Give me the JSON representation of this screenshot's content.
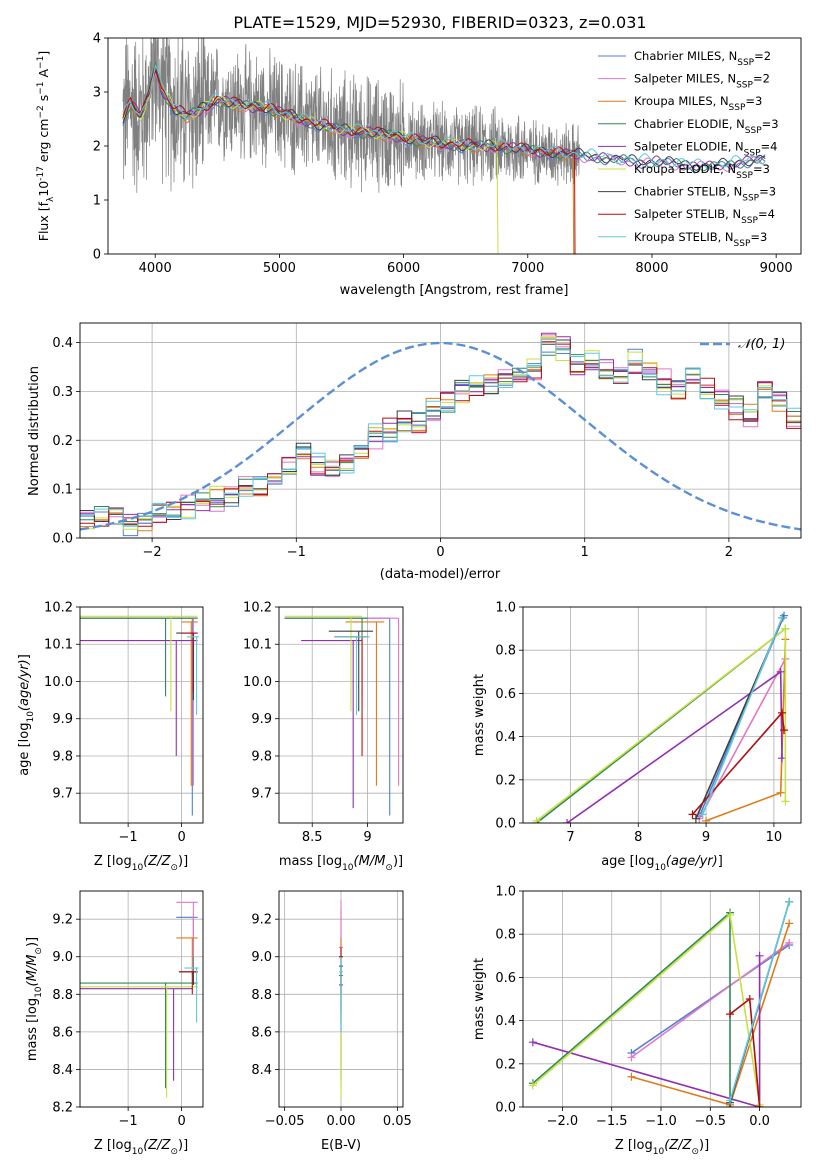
{
  "figure_title": "PLATE=1529, MJD=52930, FIBERID=0323, z=0.031",
  "colors": {
    "observed": "#808080",
    "gaussian": "#5b8fd6",
    "grid": "#b0b0b0"
  },
  "models": [
    {
      "label": "Chabrier MILES, N",
      "nssp": "=2",
      "color": "#4f7fd8"
    },
    {
      "label": "Salpeter MILES, N",
      "nssp": "=2",
      "color": "#e377c2"
    },
    {
      "label": "Kroupa MILES, N",
      "nssp": "=3",
      "color": "#e07b1a"
    },
    {
      "label": "Chabrier ELODIE, N",
      "nssp": "=3",
      "color": "#2e8b57"
    },
    {
      "label": "Salpeter ELODIE, N",
      "nssp": "=4",
      "color": "#9030b0"
    },
    {
      "label": "Kroupa ELODIE, N",
      "nssp": "=3",
      "color": "#c8e040"
    },
    {
      "label": "Chabrier STELIB, N",
      "nssp": "=3",
      "color": "#404040"
    },
    {
      "label": "Salpeter STELIB, N",
      "nssp": "=4",
      "color": "#b01010"
    },
    {
      "label": "Kroupa STELIB, N",
      "nssp": "=3",
      "color": "#60c8e0"
    }
  ],
  "chart_data": [
    {
      "id": "spectrum",
      "type": "line",
      "xlabel": "wavelength [Angstrom, rest frame]",
      "ylabel": "Flux [f",
      "ylabel_tail": "10",
      "ylabel_exp": "-17",
      "ylabel_units": " erg cm",
      "xlim": [
        3620,
        9200
      ],
      "ylim": [
        0,
        4
      ],
      "xticks": [
        4000,
        5000,
        6000,
        7000,
        8000,
        9000
      ],
      "yticks": [
        0,
        1,
        2,
        3,
        4
      ],
      "observed_range": [
        3740,
        7420
      ],
      "model_range": [
        3740,
        8920
      ],
      "continuum": [
        [
          3740,
          2.5
        ],
        [
          3800,
          2.8
        ],
        [
          3880,
          2.55
        ],
        [
          3950,
          2.9
        ],
        [
          4000,
          3.5
        ],
        [
          4050,
          3.05
        ],
        [
          4150,
          2.7
        ],
        [
          4250,
          2.55
        ],
        [
          4350,
          2.65
        ],
        [
          4500,
          2.85
        ],
        [
          4700,
          2.75
        ],
        [
          4900,
          2.7
        ],
        [
          5100,
          2.55
        ],
        [
          5300,
          2.4
        ],
        [
          5500,
          2.3
        ],
        [
          5700,
          2.25
        ],
        [
          5900,
          2.2
        ],
        [
          6100,
          2.1
        ],
        [
          6300,
          2.05
        ],
        [
          6500,
          2.0
        ],
        [
          6700,
          2.0
        ],
        [
          6900,
          1.95
        ],
        [
          7100,
          1.9
        ],
        [
          7300,
          1.85
        ],
        [
          7500,
          1.82
        ],
        [
          7700,
          1.75
        ],
        [
          7900,
          1.72
        ],
        [
          8100,
          1.7
        ],
        [
          8300,
          1.65
        ],
        [
          8500,
          1.62
        ],
        [
          8700,
          1.7
        ],
        [
          8900,
          1.75
        ]
      ],
      "model_dropouts": [
        {
          "model": 5,
          "x": 6760
        },
        {
          "model": 2,
          "x": 7370
        },
        {
          "model": 7,
          "x": 7380
        }
      ]
    },
    {
      "id": "residuals",
      "type": "step",
      "xlabel": "(data-model)/error",
      "ylabel": "Normed distribution",
      "xlim": [
        -2.5,
        2.5
      ],
      "ylim": [
        0,
        0.44
      ],
      "xticks": [
        -2,
        -1,
        0,
        1,
        2
      ],
      "yticks": [
        0.0,
        0.1,
        0.2,
        0.3,
        0.4
      ],
      "bin_width": 0.1,
      "legend": "𝒩(0, 1)",
      "hist_base": [
        0.04,
        0.045,
        0.05,
        0.03,
        0.035,
        0.05,
        0.06,
        0.065,
        0.075,
        0.08,
        0.09,
        0.1,
        0.1,
        0.12,
        0.15,
        0.17,
        0.15,
        0.14,
        0.16,
        0.18,
        0.21,
        0.22,
        0.24,
        0.23,
        0.26,
        0.28,
        0.3,
        0.31,
        0.32,
        0.33,
        0.33,
        0.34,
        0.4,
        0.39,
        0.35,
        0.36,
        0.34,
        0.33,
        0.36,
        0.34,
        0.32,
        0.31,
        0.33,
        0.3,
        0.28,
        0.27,
        0.25,
        0.31,
        0.28,
        0.24,
        0.3,
        0.25,
        0.2,
        0.23,
        0.19,
        0.17,
        0.14,
        0.13,
        0.11,
        0.1,
        0.09,
        0.08,
        0.07,
        0.07,
        0.06,
        0.06,
        0.05,
        0.05,
        0.04,
        0.04
      ]
    },
    {
      "id": "age-vs-Z",
      "type": "scatter",
      "xlabel": "Z [log",
      "xlabel_sub": "10",
      "xlabel_tail": "(Z/Z",
      "ylabel": "age  [log",
      "xlim": [
        -1.9,
        0.4
      ],
      "ylim": [
        9.62,
        10.2
      ],
      "xticks": [
        -1,
        0
      ],
      "yticks": [
        9.7,
        9.8,
        9.9,
        10.0,
        10.1,
        10.2
      ],
      "points": [
        {
          "m": 0,
          "x": 0.2,
          "y": 10.17,
          "xl": -1.9,
          "xr": 0.2,
          "yd": 9.64
        },
        {
          "m": 1,
          "x": 0.22,
          "y": 10.17,
          "xl": -1.9,
          "xr": 0.3,
          "yd": 9.72
        },
        {
          "m": 2,
          "x": 0.18,
          "y": 10.16,
          "xl": 0.0,
          "xr": 0.3,
          "yd": 9.72
        },
        {
          "m": 3,
          "x": -0.3,
          "y": 10.17,
          "xl": -1.9,
          "xr": 0.3,
          "yd": 9.96
        },
        {
          "m": 4,
          "x": -0.1,
          "y": 10.11,
          "xl": -1.9,
          "xr": 0.3,
          "yd": 9.8
        },
        {
          "m": 5,
          "x": -0.2,
          "y": 10.175,
          "xl": -1.9,
          "xr": 0.3,
          "yd": 9.92
        },
        {
          "m": 6,
          "x": 0.22,
          "y": 10.13,
          "xl": -0.1,
          "xr": 0.3,
          "yd": 9.95
        },
        {
          "m": 7,
          "x": 0.22,
          "y": 10.13,
          "xl": 0.0,
          "xr": 0.3,
          "yd": 9.97
        },
        {
          "m": 8,
          "x": 0.28,
          "y": 10.12,
          "xl": 0.1,
          "xr": 0.32,
          "yd": 9.91
        }
      ]
    },
    {
      "id": "age-vs-mass",
      "type": "scatter",
      "xlabel": "mass [log",
      "xlim": [
        8.2,
        9.32
      ],
      "ylim": [
        9.62,
        10.2
      ],
      "xticks": [
        8.5,
        9.0
      ],
      "yticks": [
        9.7,
        9.8,
        9.9,
        10.0,
        10.1,
        10.2
      ],
      "points": [
        {
          "m": 0,
          "x": 9.2,
          "y": 10.17,
          "xl": 8.25,
          "xr": 9.2,
          "yd": 9.64
        },
        {
          "m": 1,
          "x": 9.28,
          "y": 10.17,
          "xl": 8.25,
          "xr": 9.28,
          "yd": 9.72
        },
        {
          "m": 2,
          "x": 9.08,
          "y": 10.16,
          "xl": 8.8,
          "xr": 9.15,
          "yd": 9.72
        },
        {
          "m": 3,
          "x": 8.95,
          "y": 10.17,
          "xl": 8.25,
          "xr": 9.0,
          "yd": 9.96
        },
        {
          "m": 4,
          "x": 8.87,
          "y": 10.11,
          "xl": 8.4,
          "xr": 8.95,
          "yd": 9.66
        },
        {
          "m": 5,
          "x": 8.85,
          "y": 10.175,
          "xl": 8.25,
          "xr": 8.95,
          "yd": 9.92
        },
        {
          "m": 6,
          "x": 8.92,
          "y": 10.135,
          "xl": 8.65,
          "xr": 9.05,
          "yd": 9.92
        },
        {
          "m": 7,
          "x": 8.95,
          "y": 10.12,
          "xl": 8.7,
          "xr": 9.0,
          "yd": 9.8
        },
        {
          "m": 8,
          "x": 8.9,
          "y": 10.12,
          "xl": 8.7,
          "xr": 9.02,
          "yd": 9.91
        }
      ]
    },
    {
      "id": "weight-vs-age",
      "type": "line",
      "xlabel": "age  [log",
      "ylabel": "mass weight",
      "xlim": [
        6.3,
        10.4
      ],
      "ylim": [
        0.0,
        1.0
      ],
      "xticks": [
        7,
        8,
        9,
        10
      ],
      "yticks": [
        0.0,
        0.2,
        0.4,
        0.6,
        0.8,
        1.0
      ],
      "series": [
        {
          "m": 0,
          "pts": [
            [
              8.9,
              0.03
            ],
            [
              10.15,
              0.96
            ]
          ]
        },
        {
          "m": 1,
          "pts": [
            [
              8.9,
              0.02
            ],
            [
              10.17,
              0.76
            ]
          ]
        },
        {
          "m": 2,
          "pts": [
            [
              9.0,
              0.01
            ],
            [
              10.1,
              0.14
            ],
            [
              10.17,
              0.85
            ]
          ]
        },
        {
          "m": 3,
          "pts": [
            [
              6.5,
              0.0
            ],
            [
              10.17,
              0.9
            ]
          ]
        },
        {
          "m": 4,
          "pts": [
            [
              6.95,
              0.0
            ],
            [
              10.1,
              0.7
            ],
            [
              10.12,
              0.3
            ]
          ]
        },
        {
          "m": 5,
          "pts": [
            [
              6.5,
              0.01
            ],
            [
              10.17,
              0.9
            ],
            [
              10.17,
              0.1
            ]
          ]
        },
        {
          "m": 6,
          "pts": [
            [
              8.85,
              0.02
            ],
            [
              10.13,
              0.95
            ]
          ]
        },
        {
          "m": 7,
          "pts": [
            [
              8.8,
              0.04
            ],
            [
              10.12,
              0.51
            ],
            [
              10.15,
              0.43
            ]
          ]
        },
        {
          "m": 8,
          "pts": [
            [
              8.95,
              0.04
            ],
            [
              10.12,
              0.95
            ]
          ]
        }
      ]
    },
    {
      "id": "mass-vs-Z",
      "type": "scatter",
      "xlabel": "Z [log",
      "ylabel": "mass [log",
      "xlim": [
        -1.9,
        0.4
      ],
      "ylim": [
        8.2,
        9.35
      ],
      "xticks": [
        -1,
        0
      ],
      "yticks": [
        8.2,
        8.4,
        8.6,
        8.8,
        9.0,
        9.2
      ],
      "points": [
        {
          "m": 0,
          "x": 0.22,
          "y": 9.21,
          "xl": -0.1,
          "xr": 0.3,
          "yd": 8.85
        },
        {
          "m": 1,
          "x": 0.22,
          "y": 9.29,
          "xl": -0.1,
          "xr": 0.3,
          "yd": 9.0
        },
        {
          "m": 2,
          "x": 0.2,
          "y": 9.1,
          "xl": -0.1,
          "xr": 0.3,
          "yd": 8.9
        },
        {
          "m": 3,
          "x": -0.3,
          "y": 8.86,
          "xl": -1.9,
          "xr": 0.3,
          "yd": 8.3
        },
        {
          "m": 4,
          "x": -0.15,
          "y": 8.83,
          "xl": -1.9,
          "xr": 0.2,
          "yd": 8.34
        },
        {
          "m": 5,
          "x": -0.28,
          "y": 8.84,
          "xl": -1.9,
          "xr": 0.3,
          "yd": 8.25
        },
        {
          "m": 6,
          "x": 0.22,
          "y": 8.92,
          "xl": -0.05,
          "xr": 0.3,
          "yd": 8.85
        },
        {
          "m": 7,
          "x": 0.2,
          "y": 8.92,
          "xl": -0.05,
          "xr": 0.3,
          "yd": 8.8
        },
        {
          "m": 8,
          "x": 0.28,
          "y": 8.94,
          "xl": 0.05,
          "xr": 0.32,
          "yd": 8.65
        }
      ]
    },
    {
      "id": "mass-vs-ebv",
      "type": "scatter",
      "xlabel": "E(B-V)",
      "xlim": [
        -0.055,
        0.055
      ],
      "ylim": [
        8.2,
        9.35
      ],
      "xticks": [
        -0.05,
        0.0,
        0.05
      ],
      "xtick_labels": [
        "−0.05",
        "0.00",
        "0.05"
      ],
      "yticks": [
        8.4,
        8.6,
        8.8,
        9.0,
        9.2
      ],
      "points": [
        {
          "m": 0,
          "x": 0.0,
          "y": 9.0,
          "yt": 9.25,
          "yd": 8.8
        },
        {
          "m": 1,
          "x": 0.0,
          "y": 9.05,
          "yt": 9.3,
          "yd": 8.8
        },
        {
          "m": 2,
          "x": 0.0,
          "y": 9.0,
          "yt": 9.1,
          "yd": 8.85
        },
        {
          "m": 3,
          "x": 0.0,
          "y": 8.9,
          "yt": 8.95,
          "yd": 8.3
        },
        {
          "m": 4,
          "x": 0.0,
          "y": 8.85,
          "yt": 8.95,
          "yd": 8.35
        },
        {
          "m": 5,
          "x": 0.0,
          "y": 8.8,
          "yt": 8.9,
          "yd": 8.25
        },
        {
          "m": 6,
          "x": 0.0,
          "y": 8.95,
          "yt": 9.0,
          "yd": 8.65
        },
        {
          "m": 7,
          "x": 0.0,
          "y": 9.0,
          "yt": 9.05,
          "yd": 8.7
        },
        {
          "m": 8,
          "x": 0.0,
          "y": 8.92,
          "yt": 9.0,
          "yd": 8.6
        }
      ]
    },
    {
      "id": "weight-vs-Z",
      "type": "line",
      "xlabel": "Z [log",
      "ylabel": "mass weight",
      "xlim": [
        -2.4,
        0.42
      ],
      "ylim": [
        0.0,
        1.0
      ],
      "xticks": [
        -2.0,
        -1.5,
        -1.0,
        -0.5,
        0.0
      ],
      "xtick_labels": [
        "−2.0",
        "−1.5",
        "−1.0",
        "−0.5",
        "0.0"
      ],
      "yticks": [
        0.0,
        0.2,
        0.4,
        0.6,
        0.8,
        1.0
      ],
      "series": [
        {
          "m": 0,
          "pts": [
            [
              -1.3,
              0.25
            ],
            [
              0.3,
              0.75
            ]
          ]
        },
        {
          "m": 1,
          "pts": [
            [
              -1.3,
              0.23
            ],
            [
              0.3,
              0.76
            ]
          ]
        },
        {
          "m": 2,
          "pts": [
            [
              -1.3,
              0.14
            ],
            [
              -0.3,
              0.01
            ],
            [
              0.3,
              0.85
            ]
          ]
        },
        {
          "m": 3,
          "pts": [
            [
              -2.3,
              0.11
            ],
            [
              -0.3,
              0.9
            ],
            [
              -0.3,
              0.0
            ]
          ]
        },
        {
          "m": 4,
          "pts": [
            [
              -2.3,
              0.3
            ],
            [
              0.0,
              0.0
            ],
            [
              0.0,
              0.7
            ]
          ]
        },
        {
          "m": 5,
          "pts": [
            [
              -2.3,
              0.1
            ],
            [
              -0.3,
              0.89
            ],
            [
              0.0,
              0.01
            ]
          ]
        },
        {
          "m": 6,
          "pts": [
            [
              -0.3,
              0.02
            ],
            [
              0.3,
              0.95
            ]
          ]
        },
        {
          "m": 7,
          "pts": [
            [
              -0.3,
              0.43
            ],
            [
              -0.1,
              0.5
            ],
            [
              0.0,
              0.0
            ]
          ]
        },
        {
          "m": 8,
          "pts": [
            [
              -0.3,
              0.03
            ],
            [
              0.3,
              0.95
            ]
          ]
        }
      ]
    }
  ]
}
